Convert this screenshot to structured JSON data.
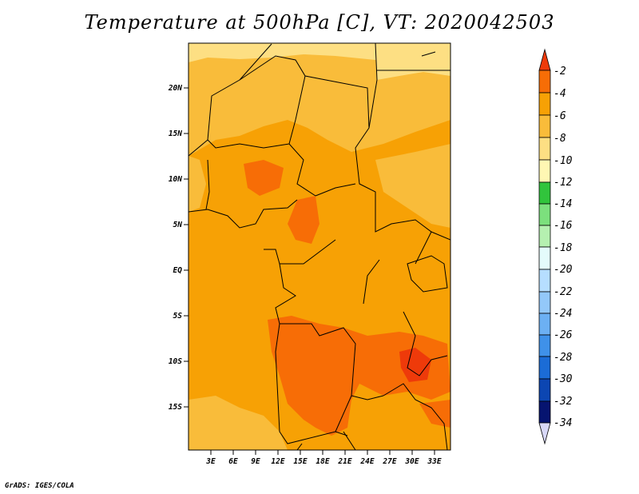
{
  "title": "Temperature at 500hPa [C], VT: 2020042503",
  "credit": "GrADS: IGES/COLA",
  "map": {
    "lat_ticks": [
      "20N",
      "15N",
      "10N",
      "5N",
      "EQ",
      "5S",
      "10S",
      "15S"
    ],
    "lon_ticks": [
      "3E",
      "6E",
      "9E",
      "12E",
      "15E",
      "18E",
      "21E",
      "24E",
      "27E",
      "30E",
      "33E"
    ]
  },
  "colorbar": {
    "labels": [
      "-2",
      "-4",
      "-6",
      "-8",
      "-10",
      "-12",
      "-14",
      "-16",
      "-18",
      "-20",
      "-22",
      "-24",
      "-26",
      "-28",
      "-30",
      "-32",
      "-34"
    ],
    "colors": [
      "#ee3a0a",
      "#f76d06",
      "#f7a105",
      "#f9bc3a",
      "#fddf83",
      "#fff7b3",
      "#31c43c",
      "#7ce07d",
      "#b5f0b0",
      "#e4fbfb",
      "#b6deff",
      "#93c8f9",
      "#6cb0f3",
      "#3f91e9",
      "#1b6cd6",
      "#0c46b2",
      "#061470",
      "#d8d8f8"
    ]
  }
}
